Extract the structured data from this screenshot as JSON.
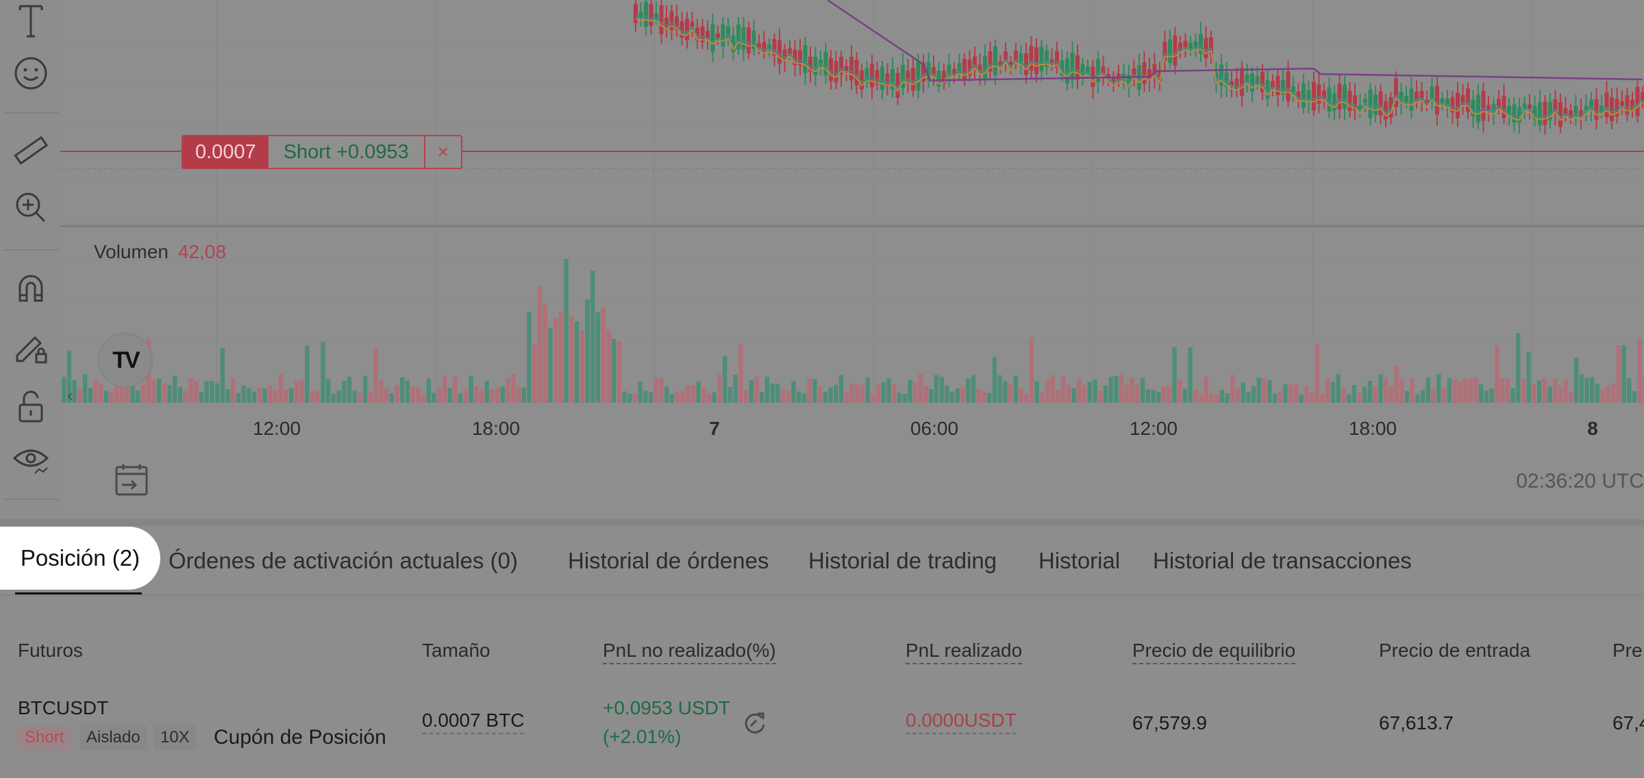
{
  "toolbar": {
    "tools": [
      "text-tool",
      "emoji-tool",
      "ruler-tool",
      "zoom-in-tool",
      "magnet-tool",
      "lock-drawing-tool",
      "lock-tool",
      "visibility-tool"
    ]
  },
  "chart": {
    "volume_label": "Volumen",
    "volume_value": "42,08",
    "x_ticks": [
      "12:00",
      "18:00",
      "7",
      "06:00",
      "12:00",
      "18:00",
      "8"
    ],
    "clock": "02:36:20 UTC",
    "position_label": {
      "quantity": "0.0007",
      "pnl": "Short +0.0953",
      "close": "×"
    },
    "logo": "TV",
    "colors": {
      "up": "#2f8a5c",
      "down": "#b33c48",
      "ma_purple": "#7a3f86",
      "ma_teal": "#3f8d8a",
      "ma_orange": "#c08a3a"
    }
  },
  "tabs": {
    "active": "Posición (2)",
    "items": [
      "Órdenes de activación actuales (0)",
      "Historial de órdenes",
      "Historial de trading",
      "Historial",
      "Historial de transacciones"
    ]
  },
  "table": {
    "headers": {
      "futures": "Futuros",
      "size": "Tamaño",
      "unrealized": "PnL no realizado(%)",
      "realized": "PnL realizado",
      "breakeven": "Precio de equilibrio",
      "entry": "Precio de entrada",
      "mark": "Pre"
    },
    "row": {
      "symbol": "BTCUSDT",
      "side": "Short",
      "margin_mode": "Aislado",
      "leverage": "10X",
      "coupon": "Cupón de Posición",
      "size": "0.0007 BTC",
      "unrealized_value": "+0.0953 USDT",
      "unrealized_pct": "(+2.01%)",
      "realized": "0.0000USDT",
      "breakeven": "67,579.9",
      "entry": "67,613.7",
      "mark": "67,4"
    }
  }
}
